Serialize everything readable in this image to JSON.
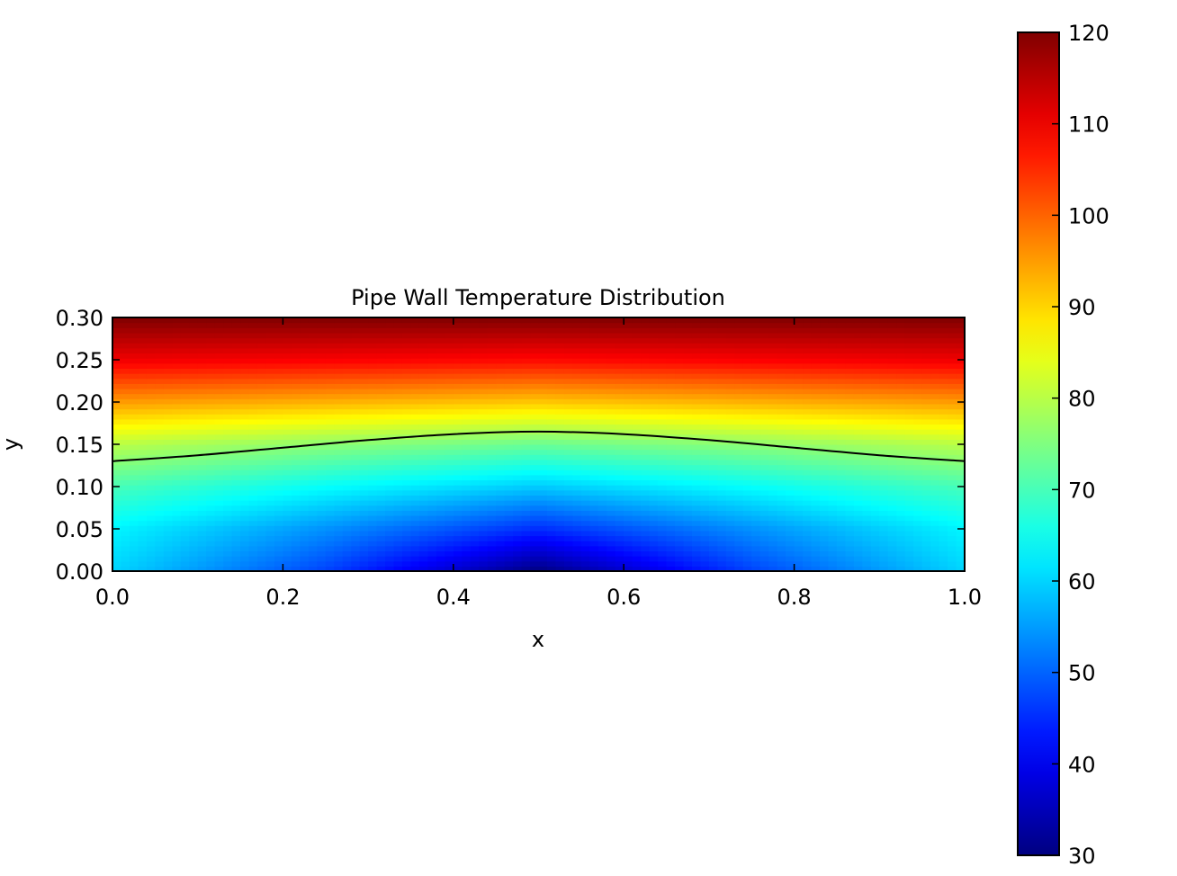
{
  "chart_data": {
    "type": "heatmap",
    "title": "Pipe Wall Temperature Distribution",
    "xlabel": "x",
    "ylabel": "y",
    "xlim": [
      0.0,
      1.0
    ],
    "ylim": [
      0.0,
      0.3
    ],
    "x_ticks": [
      "0.0",
      "0.2",
      "0.4",
      "0.6",
      "0.8",
      "1.0"
    ],
    "y_ticks": [
      "0.00",
      "0.05",
      "0.10",
      "0.15",
      "0.20",
      "0.25",
      "0.30"
    ],
    "colormap": "jet",
    "colorbar": {
      "range": [
        30,
        120
      ],
      "ticks": [
        "30",
        "40",
        "50",
        "60",
        "70",
        "80",
        "90",
        "100",
        "110",
        "120"
      ]
    },
    "contour": {
      "color": "#000000",
      "x": [
        0.0,
        0.1,
        0.2,
        0.3,
        0.4,
        0.5,
        0.6,
        0.7,
        0.8,
        0.9,
        1.0
      ],
      "y": [
        0.13,
        0.137,
        0.146,
        0.155,
        0.162,
        0.165,
        0.162,
        0.155,
        0.146,
        0.137,
        0.13
      ]
    },
    "field": {
      "x": [
        0.0,
        0.25,
        0.5,
        0.75,
        1.0
      ],
      "y": [
        0.0,
        0.05,
        0.1,
        0.15,
        0.2,
        0.25,
        0.3
      ],
      "values": [
        [
          60,
          47,
          30,
          47,
          60
        ],
        [
          63,
          54,
          45,
          54,
          63
        ],
        [
          70,
          64,
          59,
          64,
          70
        ],
        [
          80,
          76,
          73,
          76,
          80
        ],
        [
          95,
          93,
          91,
          93,
          95
        ],
        [
          110,
          109,
          108,
          109,
          110
        ],
        [
          120,
          120,
          120,
          120,
          120
        ]
      ]
    }
  }
}
